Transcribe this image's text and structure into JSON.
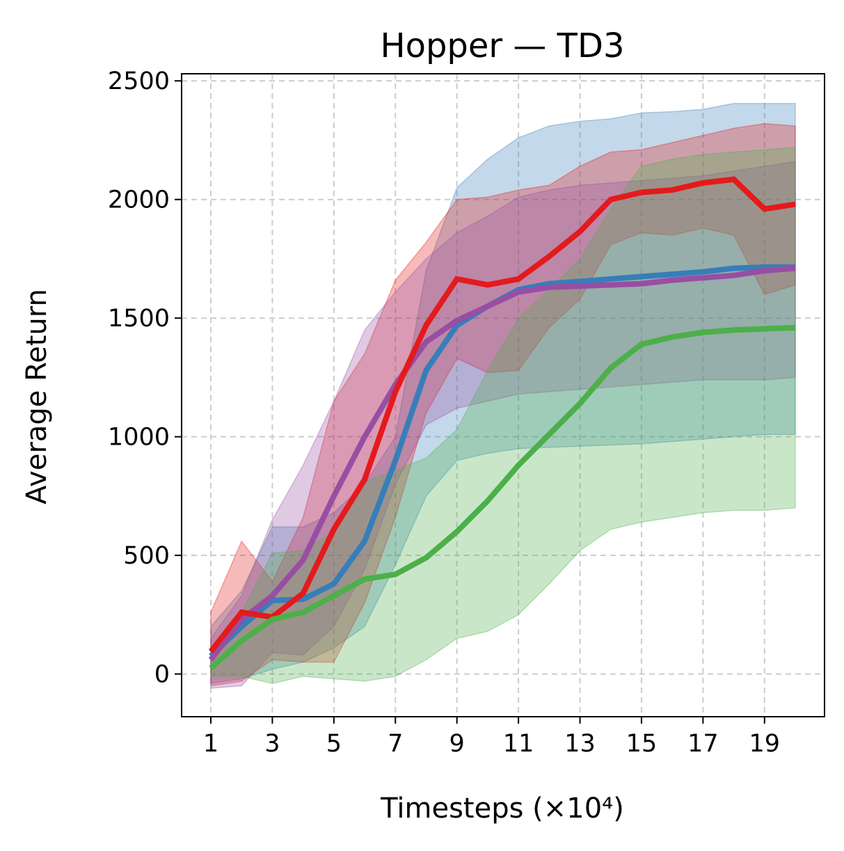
{
  "chart_data": {
    "type": "line",
    "title": "Hopper — TD3",
    "xlabel": "Timesteps (×10⁴)",
    "ylabel": "Average Return",
    "xlim": [
      0.05,
      20.95
    ],
    "ylim": [
      -180,
      2530
    ],
    "xticks": [
      1,
      3,
      5,
      7,
      9,
      11,
      13,
      15,
      17,
      19
    ],
    "yticks": [
      0,
      500,
      1000,
      1500,
      2000,
      2500
    ],
    "grid": true,
    "x": [
      1,
      2,
      3,
      4,
      5,
      6,
      7,
      8,
      9,
      10,
      11,
      12,
      13,
      14,
      15,
      16,
      17,
      18,
      19,
      20
    ],
    "series": [
      {
        "name": "blue",
        "color": "#377eb8",
        "mean": [
          75,
          200,
          310,
          315,
          380,
          560,
          900,
          1280,
          1470,
          1550,
          1620,
          1645,
          1655,
          1665,
          1675,
          1685,
          1695,
          1710,
          1715,
          1715
        ],
        "upper": [
          200,
          350,
          620,
          620,
          680,
          800,
          1000,
          1700,
          2050,
          2170,
          2260,
          2310,
          2330,
          2340,
          2365,
          2370,
          2380,
          2405,
          2405,
          2405
        ],
        "lower": [
          -40,
          -20,
          20,
          50,
          110,
          200,
          460,
          750,
          900,
          930,
          950,
          955,
          960,
          965,
          970,
          980,
          990,
          1000,
          1010,
          1010
        ]
      },
      {
        "name": "red",
        "color": "#e41a1c",
        "mean": [
          95,
          260,
          240,
          340,
          610,
          820,
          1190,
          1470,
          1665,
          1640,
          1665,
          1760,
          1865,
          2000,
          2030,
          2040,
          2070,
          2085,
          1960,
          1980
        ],
        "upper": [
          260,
          560,
          390,
          660,
          1150,
          1350,
          1660,
          1820,
          2000,
          2010,
          2040,
          2060,
          2140,
          2200,
          2210,
          2240,
          2270,
          2300,
          2320,
          2310
        ],
        "lower": [
          -50,
          -30,
          60,
          50,
          50,
          300,
          660,
          1100,
          1330,
          1270,
          1280,
          1460,
          1580,
          1810,
          1860,
          1850,
          1880,
          1850,
          1600,
          1640
        ]
      },
      {
        "name": "purple",
        "color": "#984ea3",
        "mean": [
          60,
          230,
          330,
          480,
          750,
          1000,
          1220,
          1400,
          1490,
          1550,
          1610,
          1630,
          1635,
          1640,
          1645,
          1660,
          1670,
          1680,
          1700,
          1710
        ],
        "upper": [
          150,
          330,
          650,
          880,
          1150,
          1450,
          1610,
          1750,
          1860,
          1930,
          2010,
          2040,
          2060,
          2070,
          2080,
          2090,
          2100,
          2120,
          2140,
          2160
        ],
        "lower": [
          -60,
          -50,
          90,
          80,
          200,
          440,
          800,
          1050,
          1120,
          1150,
          1180,
          1190,
          1200,
          1210,
          1220,
          1230,
          1240,
          1240,
          1240,
          1250
        ]
      },
      {
        "name": "green",
        "color": "#4daf4a",
        "mean": [
          25,
          140,
          230,
          260,
          330,
          400,
          420,
          490,
          600,
          730,
          880,
          1010,
          1140,
          1290,
          1390,
          1420,
          1440,
          1450,
          1455,
          1460
        ],
        "upper": [
          110,
          260,
          510,
          520,
          600,
          810,
          860,
          910,
          1030,
          1280,
          1500,
          1620,
          1750,
          1960,
          2140,
          2170,
          2190,
          2200,
          2210,
          2220
        ],
        "lower": [
          -10,
          -10,
          -40,
          -10,
          -20,
          -30,
          -10,
          60,
          150,
          180,
          250,
          380,
          520,
          610,
          640,
          660,
          680,
          690,
          690,
          700
        ]
      }
    ]
  }
}
